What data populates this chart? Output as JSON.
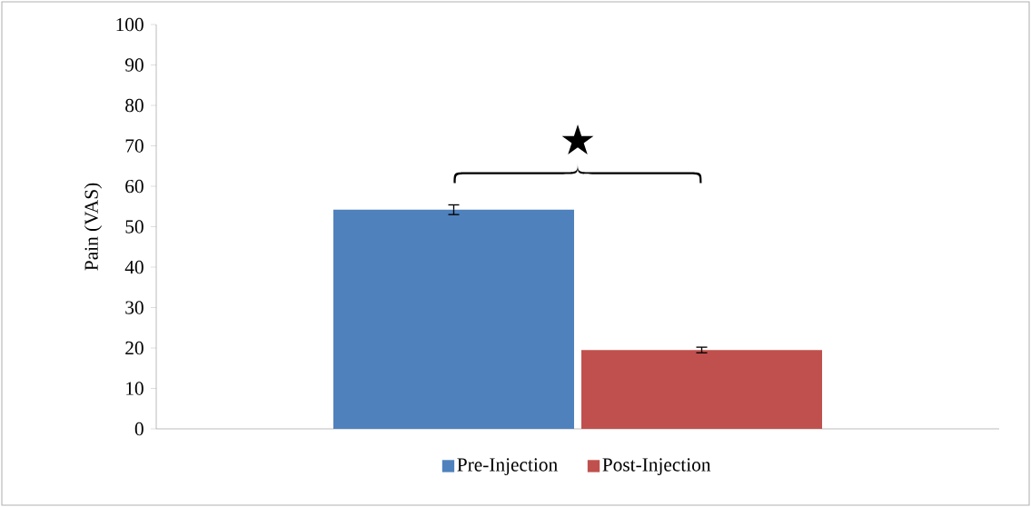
{
  "chart_data": {
    "type": "bar",
    "ylabel": "Pain (VAS)",
    "categories": [
      null
    ],
    "series": [
      {
        "name": "Pre-Injection",
        "color": "#4f81bd",
        "values": [
          54.2
        ],
        "errors": [
          1.2
        ]
      },
      {
        "name": "Post-Injection",
        "color": "#c0504d",
        "values": [
          19.5
        ],
        "errors": [
          0.7
        ]
      }
    ],
    "ylim": [
      0,
      100
    ],
    "yticks": [
      0,
      10,
      20,
      30,
      40,
      50,
      60,
      70,
      80,
      90,
      100
    ],
    "legend": "bottom",
    "annotations": [
      "★"
    ]
  }
}
